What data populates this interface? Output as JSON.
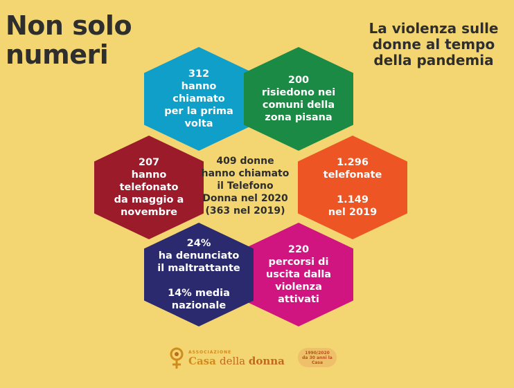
{
  "header": {
    "title": "Non solo\nnumeri",
    "subtitle": "La violenza sulle\ndonne al tempo\ndella pandemia"
  },
  "hexagons": [
    {
      "name": "hex-first-time-callers",
      "text": "312\nhanno\nchiamato\nper la prima\nvolta",
      "color": "#0f9fc9"
    },
    {
      "name": "hex-pisa-residents",
      "text": "200\nrisiedono nei\ncomuni della\nzona pisana",
      "color": "#1a8a45"
    },
    {
      "name": "hex-phone-calls",
      "text": "1.296\ntelefonate\n\n1.149\nnel 2019",
      "color": "#ee5524"
    },
    {
      "name": "hex-exit-paths",
      "text": "220\npercorsi di\nuscita dalla\nviolenza\nattivati",
      "color": "#d11580"
    },
    {
      "name": "hex-reported",
      "text": "24%\nha denunciato\nil maltrattante\n\n14%  media\nnazionale",
      "color": "#2b2a6e"
    },
    {
      "name": "hex-may-november",
      "text": "207\nhanno telefonato\nda maggio a\nnovembre",
      "color": "#9b1b2a"
    }
  ],
  "center": {
    "text": "409 donne\nhanno chiamato\nil Telefono\nDonna nel 2020\n(363 nel 2019)"
  },
  "logo": {
    "small": "ASSOCIAZIONE",
    "word1": "Casa ",
    "word2": "della ",
    "word3": "donna"
  },
  "badge": {
    "text": "1990/2020\nda 30 anni la Casa"
  }
}
